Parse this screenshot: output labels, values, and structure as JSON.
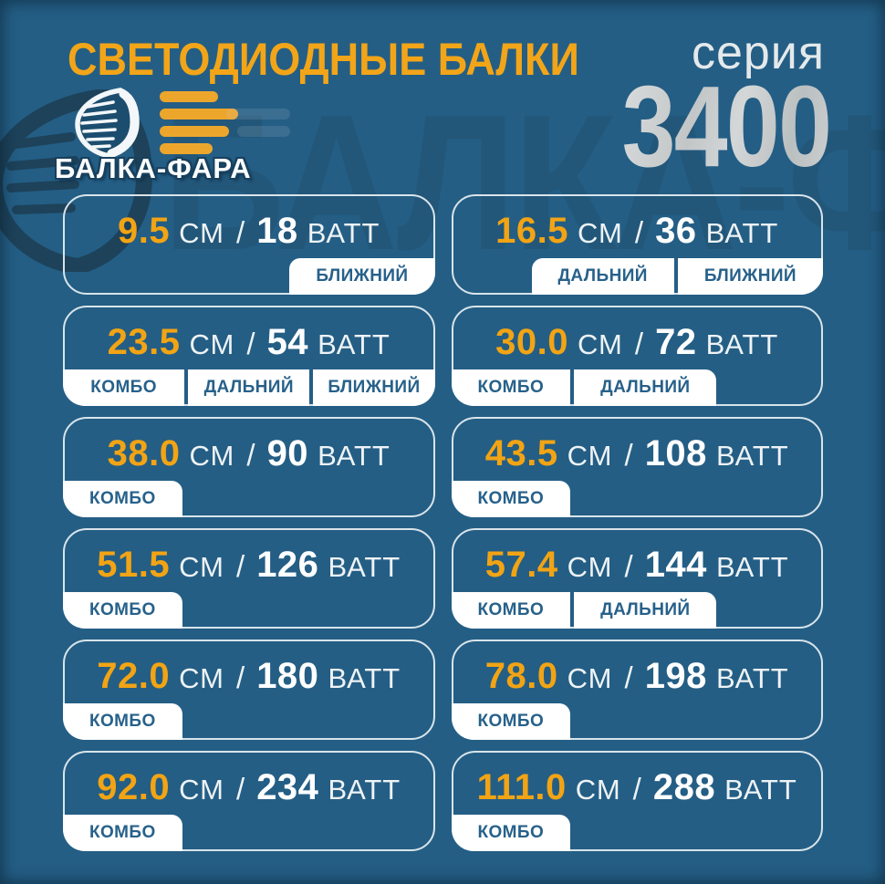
{
  "header": {
    "title": "СВЕТОДИОДНЫЕ БАЛКИ",
    "series_label": "серия",
    "series_number": "3400",
    "brand": "БАЛКА-ФАРА",
    "watermark": "БАЛКА-ФАРА"
  },
  "units": {
    "size": "СМ",
    "separator": "/",
    "power": "ВАТТ"
  },
  "colors": {
    "background": "#245e85",
    "accent_amber": "#f2a414",
    "card_border": "#e9f0f3",
    "tag_background": "#ffffff",
    "tag_text": "#27618a",
    "series_silver": "#cacdcf",
    "white_text": "#ffffff"
  },
  "cards": [
    {
      "size": "9.5",
      "power": "18",
      "tags_align": "right",
      "tags": [
        "БЛИЖНИЙ"
      ]
    },
    {
      "size": "16.5",
      "power": "36",
      "tags_align": "right",
      "tags": [
        "ДАЛЬНИЙ",
        "БЛИЖНИЙ"
      ]
    },
    {
      "size": "23.5",
      "power": "54",
      "tags_align": "full",
      "tags": [
        "КОМБО",
        "ДАЛЬНИЙ",
        "БЛИЖНИЙ"
      ]
    },
    {
      "size": "30.0",
      "power": "72",
      "tags_align": "left",
      "tags": [
        "КОМБО",
        "ДАЛЬНИЙ"
      ]
    },
    {
      "size": "38.0",
      "power": "90",
      "tags_align": "left",
      "tags": [
        "КОМБО"
      ]
    },
    {
      "size": "43.5",
      "power": "108",
      "tags_align": "left",
      "tags": [
        "КОМБО"
      ]
    },
    {
      "size": "51.5",
      "power": "126",
      "tags_align": "left",
      "tags": [
        "КОМБО"
      ]
    },
    {
      "size": "57.4",
      "power": "144",
      "tags_align": "left",
      "tags": [
        "КОМБО",
        "ДАЛЬНИЙ"
      ]
    },
    {
      "size": "72.0",
      "power": "180",
      "tags_align": "left",
      "tags": [
        "КОМБО"
      ]
    },
    {
      "size": "78.0",
      "power": "198",
      "tags_align": "left",
      "tags": [
        "КОМБО"
      ]
    },
    {
      "size": "92.0",
      "power": "234",
      "tags_align": "left",
      "tags": [
        "КОМБО"
      ]
    },
    {
      "size": "111.0",
      "power": "288",
      "tags_align": "left",
      "tags": [
        "КОМБО"
      ]
    }
  ]
}
